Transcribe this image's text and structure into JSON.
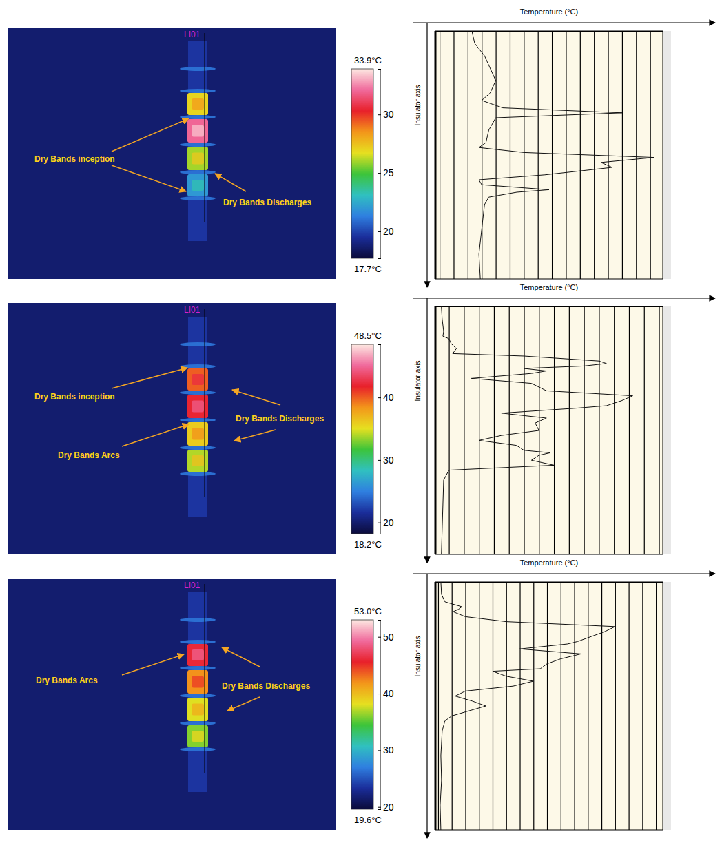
{
  "chart_data": [
    {
      "type": "line",
      "image_label": "LI01",
      "annotations": [
        {
          "text": "Dry Bands inception"
        },
        {
          "text": "Dry Bands Discharges"
        }
      ],
      "band_temperatures": [
        27,
        32,
        26,
        22
      ],
      "colorbar": {
        "range": [
          17.7,
          33.9
        ],
        "range_labels": [
          "17.7°C",
          "33.9°C"
        ],
        "ticks": [
          20,
          25,
          30
        ]
      },
      "ylabel": "Temperature (°C)",
      "xlabel": "Insulator axis",
      "orientation": "horizontal",
      "grid": true,
      "tick_labels": false,
      "xlim": [
        0,
        100
      ],
      "ylim": [
        17.7,
        33.9
      ],
      "yticks": [
        18,
        19,
        20,
        21,
        22,
        23,
        24,
        25,
        26,
        27,
        28,
        29,
        30,
        31,
        32,
        33
      ],
      "x": [
        0,
        5,
        10,
        15,
        20,
        25,
        28,
        31,
        33,
        35,
        40,
        45,
        47,
        49,
        51,
        53,
        55,
        58,
        60,
        62,
        64,
        65,
        67,
        70,
        80,
        90,
        100
      ],
      "values": [
        20.3,
        20.5,
        21.2,
        21.6,
        22.0,
        21.6,
        21.0,
        22.5,
        31.0,
        22.0,
        21.5,
        21.3,
        20.8,
        24.0,
        33.3,
        29.5,
        30.3,
        25.5,
        20.8,
        21.0,
        25.8,
        23.5,
        21.5,
        21.2,
        21.0,
        20.8,
        20.9
      ]
    },
    {
      "type": "line",
      "image_label": "LI01",
      "annotations": [
        {
          "text": "Dry Bands inception"
        },
        {
          "text": "Dry Bands Discharges"
        },
        {
          "text": "Dry Bands Arcs"
        }
      ],
      "band_temperatures": [
        40,
        42,
        36,
        34
      ],
      "colorbar": {
        "range": [
          18.2,
          48.5
        ],
        "range_labels": [
          "18.2°C",
          "48.5°C"
        ],
        "ticks": [
          20,
          30,
          40
        ]
      },
      "ylabel": "Temperature (°C)",
      "xlabel": "Insulator axis",
      "orientation": "horizontal",
      "grid": true,
      "tick_labels": false,
      "xlim": [
        0,
        100
      ],
      "ylim": [
        18.2,
        48.5
      ],
      "yticks": [
        20,
        22,
        24,
        26,
        28,
        30,
        32,
        34,
        36,
        38,
        40,
        42,
        44,
        46,
        48
      ],
      "x": [
        0,
        5,
        10,
        12,
        13,
        15,
        17,
        19,
        20,
        22,
        23,
        24,
        25,
        26,
        27,
        29,
        31,
        34,
        36,
        38,
        40,
        41,
        43,
        45,
        47,
        50,
        52,
        54,
        56,
        58,
        59,
        60,
        62,
        64,
        66,
        70,
        80,
        90,
        100
      ],
      "values": [
        19.0,
        19.1,
        19.3,
        19.2,
        20.0,
        20.3,
        21.0,
        20.5,
        30.0,
        40.0,
        41.0,
        38.0,
        30.0,
        33.0,
        31.0,
        23.0,
        31.0,
        33.0,
        44.5,
        43.0,
        41.0,
        37.0,
        27.0,
        33.0,
        31.5,
        32.0,
        27.0,
        24.0,
        29.0,
        30.0,
        33.5,
        32.0,
        31.0,
        34.0,
        20.0,
        19.3,
        19.2,
        19.1,
        19.0
      ]
    },
    {
      "type": "line",
      "image_label": "LI01",
      "annotations": [
        {
          "text": "Dry Bands Arcs"
        },
        {
          "text": "Dry Bands Discharges"
        }
      ],
      "band_temperatures": [
        46,
        42,
        38,
        36
      ],
      "colorbar": {
        "range": [
          19.6,
          53.0
        ],
        "range_labels": [
          "19.6°C",
          "53.0°C"
        ],
        "ticks": [
          20,
          30,
          40,
          50
        ]
      },
      "ylabel": "Temperature (°C)",
      "xlabel": "Insulator axis",
      "orientation": "horizontal",
      "grid": true,
      "tick_labels": false,
      "xlim": [
        0,
        100
      ],
      "ylim": [
        19.6,
        53.0
      ],
      "yticks": [
        20,
        22,
        24,
        26,
        28,
        30,
        32,
        34,
        36,
        38,
        40,
        42,
        44,
        46,
        48,
        50,
        52
      ],
      "x": [
        0,
        5,
        8,
        10,
        11,
        12,
        14,
        16,
        18,
        20,
        22,
        24,
        25,
        27,
        29,
        31,
        33,
        35,
        36,
        38,
        40,
        42,
        44,
        46,
        48,
        50,
        52,
        54,
        56,
        60,
        70,
        80,
        90,
        100
      ],
      "values": [
        20.4,
        20.5,
        21.0,
        23.5,
        23.0,
        22.2,
        24.0,
        30.0,
        46.0,
        44.5,
        42.5,
        40.5,
        39.0,
        32.0,
        41.0,
        38.0,
        36.0,
        35.0,
        28.0,
        30.0,
        34.0,
        31.0,
        24.0,
        22.5,
        25.0,
        27.0,
        24.5,
        22.0,
        21.0,
        20.6,
        20.4,
        20.5,
        20.3,
        20.4
      ]
    }
  ]
}
